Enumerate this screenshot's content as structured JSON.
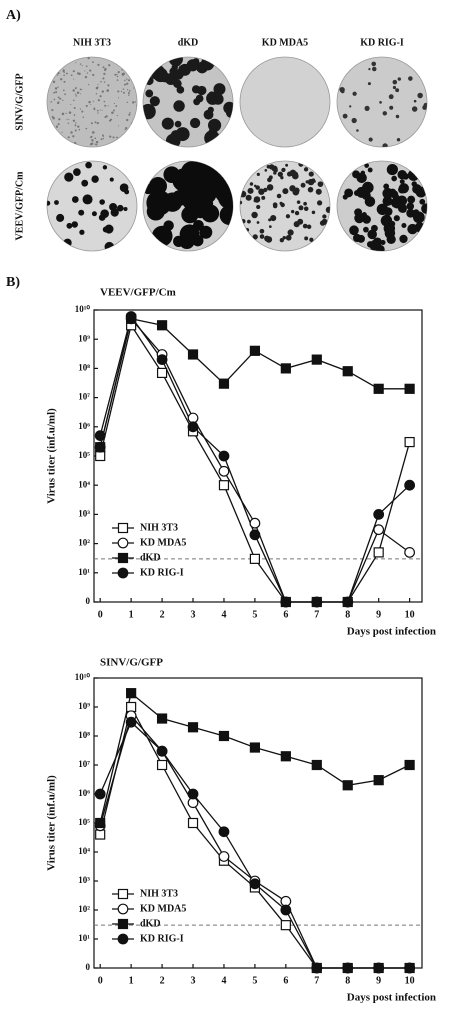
{
  "panel_a": {
    "label": "A)",
    "columns": [
      "NIH 3T3",
      "dKD",
      "KD MDA5",
      "KD RIG-I"
    ],
    "rows": [
      "SINV/G/GFP",
      "VEEV/GFP/Cm"
    ]
  },
  "panel_b_label": "B)",
  "chart_data": [
    {
      "type": "line",
      "title": "VEEV/GFP/Cm",
      "xlabel": "Days post infection",
      "ylabel": "Virus titer (inf.u/ml)",
      "x": [
        0,
        1,
        2,
        3,
        4,
        5,
        6,
        7,
        8,
        9,
        10
      ],
      "xlim": [
        -0.2,
        10.4
      ],
      "xticks": [
        0,
        1,
        2,
        3,
        4,
        5,
        6,
        7,
        8,
        9,
        10
      ],
      "ylim": [
        0,
        10000000000
      ],
      "log_scale": true,
      "reference_line": 30,
      "legend": "lower-left",
      "yticks": [
        0,
        {
          "value": 10,
          "label": "10¹"
        },
        {
          "value": 100,
          "label": "10²"
        },
        {
          "value": 1000,
          "label": "10³"
        },
        {
          "value": 10000,
          "label": "10⁴"
        },
        {
          "value": 100000,
          "label": "10⁵"
        },
        {
          "value": 1000000,
          "label": "10⁶"
        },
        {
          "value": 10000000,
          "label": "10⁷"
        },
        {
          "value": 100000000,
          "label": "10⁸"
        },
        {
          "value": 1000000000,
          "label": "10⁹"
        },
        {
          "value": 10000000000,
          "label": "10¹⁰"
        }
      ],
      "series": [
        {
          "name": "NIH 3T3",
          "color": "#111111",
          "marker": "square",
          "filled": false,
          "values": [
            100000,
            3000000000,
            70000000,
            700000,
            10000,
            30,
            0,
            0,
            0,
            50,
            300000
          ]
        },
        {
          "name": "KD MDA5",
          "color": "#111111",
          "marker": "circle",
          "filled": false,
          "values": [
            200000,
            5000000000,
            300000000,
            2000000,
            30000,
            500,
            0,
            0,
            0,
            300,
            50
          ]
        },
        {
          "name": "dKD",
          "color": "#111111",
          "marker": "square",
          "filled": true,
          "values": [
            200000,
            5000000000,
            3000000000,
            300000000,
            30000000,
            400000000,
            100000000,
            200000000,
            80000000,
            20000000,
            20000000
          ]
        },
        {
          "name": "KD RIG-I",
          "color": "#111111",
          "marker": "circle",
          "filled": true,
          "values": [
            500000,
            6000000000,
            200000000,
            1000000,
            100000,
            200,
            0,
            0,
            0,
            1000,
            10000
          ]
        }
      ]
    },
    {
      "type": "line",
      "title": "SINV/G/GFP",
      "xlabel": "Days post infection",
      "ylabel": "Virus titer (inf.u/ml)",
      "x": [
        0,
        1,
        2,
        3,
        4,
        5,
        6,
        7,
        8,
        9,
        10
      ],
      "xlim": [
        -0.2,
        10.4
      ],
      "xticks": [
        0,
        1,
        2,
        3,
        4,
        5,
        6,
        7,
        8,
        9,
        10
      ],
      "ylim": [
        0,
        10000000000
      ],
      "log_scale": true,
      "reference_line": 30,
      "legend": "lower-left",
      "yticks": [
        0,
        {
          "value": 10,
          "label": "10¹"
        },
        {
          "value": 100,
          "label": "10²"
        },
        {
          "value": 1000,
          "label": "10³"
        },
        {
          "value": 10000,
          "label": "10⁴"
        },
        {
          "value": 100000,
          "label": "10⁵"
        },
        {
          "value": 1000000,
          "label": "10⁶"
        },
        {
          "value": 10000000,
          "label": "10⁷"
        },
        {
          "value": 100000000,
          "label": "10⁸"
        },
        {
          "value": 1000000000,
          "label": "10⁹"
        },
        {
          "value": 10000000000,
          "label": "10¹⁰"
        }
      ],
      "series": [
        {
          "name": "NIH 3T3",
          "color": "#111111",
          "marker": "square",
          "filled": false,
          "values": [
            40000,
            1000000000,
            10000000,
            100000,
            5000,
            600,
            30,
            0,
            0,
            0,
            0
          ]
        },
        {
          "name": "KD MDA5",
          "color": "#111111",
          "marker": "circle",
          "filled": false,
          "values": [
            80000,
            500000000,
            30000000,
            500000,
            7000,
            1000,
            200,
            0,
            0,
            0,
            0
          ]
        },
        {
          "name": "dKD",
          "color": "#111111",
          "marker": "square",
          "filled": true,
          "values": [
            100000,
            3000000000,
            400000000,
            200000000,
            100000000,
            40000000,
            20000000,
            10000000,
            2000000,
            3000000,
            10000000
          ]
        },
        {
          "name": "KD RIG-I",
          "color": "#111111",
          "marker": "circle",
          "filled": true,
          "values": [
            1000000,
            300000000,
            30000000,
            1000000,
            50000,
            800,
            100,
            0,
            0,
            0,
            0
          ]
        }
      ]
    }
  ]
}
